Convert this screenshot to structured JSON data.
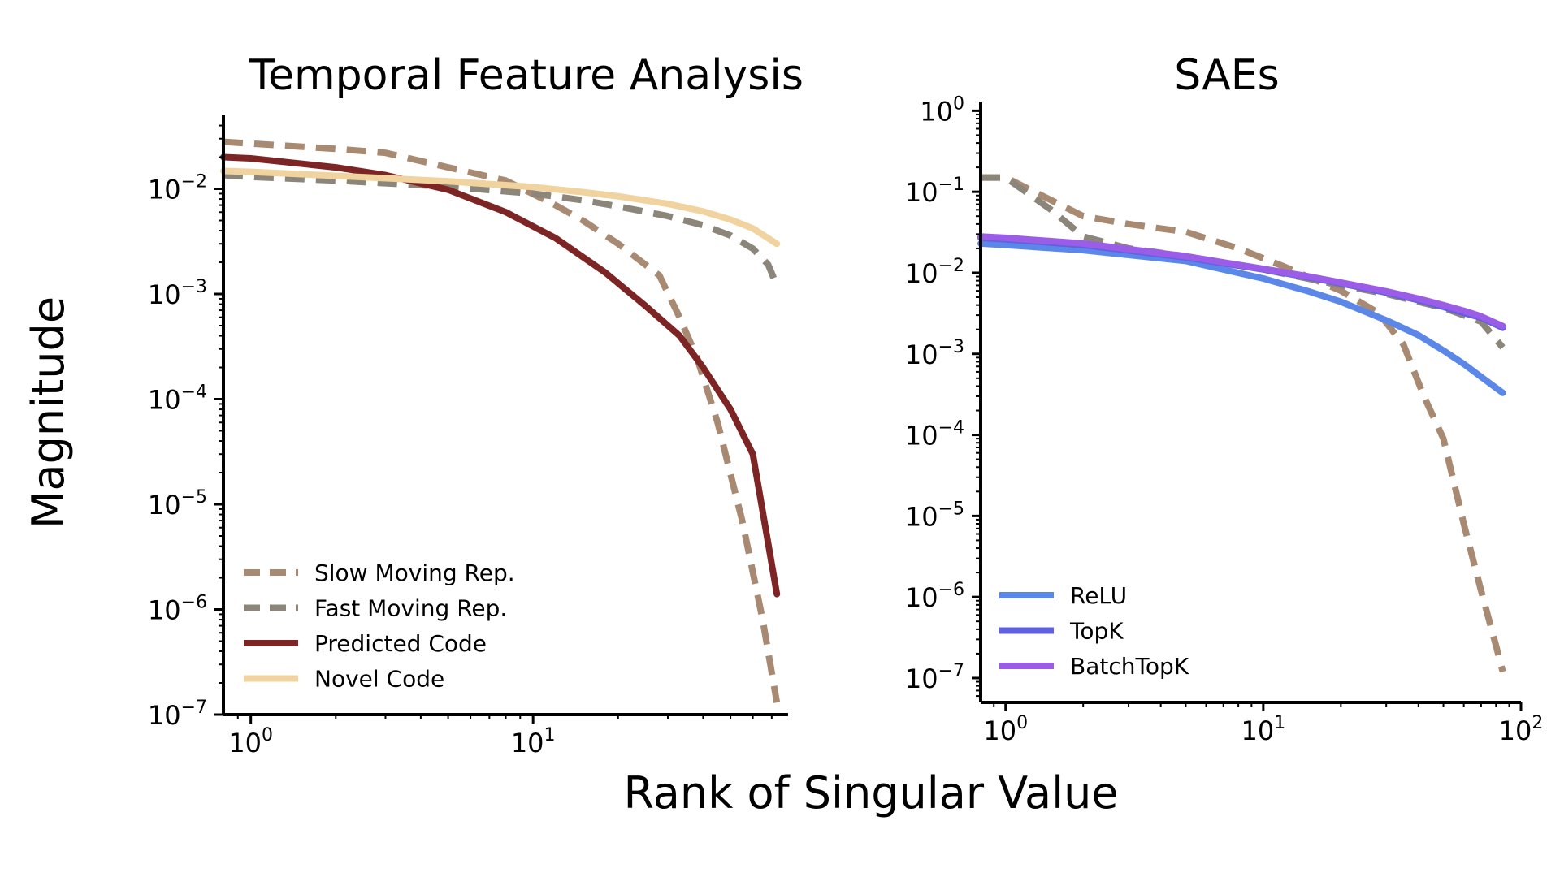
{
  "figure": {
    "xlabel": "Rank of Singular Value",
    "ylabel": "Magnitude"
  },
  "chart_data": [
    {
      "type": "line",
      "title": "Temporal Feature Analysis",
      "xscale": "log",
      "yscale": "log",
      "xlim": [
        0.8,
        80
      ],
      "ylim": [
        1e-07,
        0.05
      ],
      "xticks": [
        {
          "value": 1,
          "base": "10",
          "exp": "0"
        },
        {
          "value": 10,
          "base": "10",
          "exp": "1"
        }
      ],
      "yticks": [
        {
          "value": 0.01,
          "base": "10",
          "exp": "−2"
        },
        {
          "value": 0.001,
          "base": "10",
          "exp": "−3"
        },
        {
          "value": 0.0001,
          "base": "10",
          "exp": "−4"
        },
        {
          "value": 1e-05,
          "base": "10",
          "exp": "−5"
        },
        {
          "value": 1e-06,
          "base": "10",
          "exp": "−6"
        },
        {
          "value": 1e-07,
          "base": "10",
          "exp": "−7"
        }
      ],
      "legend_position": "lower-left",
      "series": [
        {
          "name": "Slow Moving Rep.",
          "color": "#a88a72",
          "dash": true,
          "x": [
            0.8,
            1,
            2,
            3,
            5,
            8,
            12,
            15,
            20,
            28,
            33,
            38,
            45,
            55,
            65,
            73
          ],
          "y": [
            0.028,
            0.027,
            0.024,
            0.022,
            0.016,
            0.012,
            0.007,
            0.005,
            0.003,
            0.0015,
            0.0006,
            0.00025,
            6e-05,
            7e-06,
            8e-07,
            1.3e-07
          ]
        },
        {
          "name": "Fast Moving Rep.",
          "color": "#8c8579",
          "dash": true,
          "x": [
            0.8,
            1,
            2,
            5,
            10,
            15,
            20,
            30,
            40,
            50,
            60,
            68,
            73
          ],
          "y": [
            0.0135,
            0.013,
            0.012,
            0.0105,
            0.009,
            0.0078,
            0.0068,
            0.0055,
            0.0045,
            0.0036,
            0.0027,
            0.0019,
            0.0012
          ]
        },
        {
          "name": "Predicted Code",
          "color": "#7d2524",
          "dash": false,
          "x": [
            0.8,
            1,
            2,
            3,
            5,
            8,
            12,
            18,
            25,
            33,
            40,
            50,
            60,
            73
          ],
          "y": [
            0.02,
            0.0195,
            0.016,
            0.0135,
            0.0098,
            0.006,
            0.0034,
            0.0016,
            0.00077,
            0.0004,
            0.0002,
            8e-05,
            3e-05,
            1.4e-06
          ]
        },
        {
          "name": "Novel Code",
          "color": "#f0d39e",
          "dash": false,
          "x": [
            0.8,
            1,
            2,
            5,
            10,
            15,
            20,
            30,
            40,
            50,
            60,
            73
          ],
          "y": [
            0.0148,
            0.0145,
            0.0133,
            0.0118,
            0.0104,
            0.0093,
            0.0085,
            0.0072,
            0.0061,
            0.0051,
            0.0042,
            0.003
          ]
        }
      ]
    },
    {
      "type": "line",
      "title": "SAEs",
      "xscale": "log",
      "yscale": "log",
      "xlim": [
        0.8,
        100
      ],
      "ylim": [
        5e-08,
        1.3
      ],
      "xticks": [
        {
          "value": 1,
          "base": "10",
          "exp": "0"
        },
        {
          "value": 10,
          "base": "10",
          "exp": "1"
        },
        {
          "value": 100,
          "base": "10",
          "exp": "2"
        }
      ],
      "yticks": [
        {
          "value": 1,
          "base": "10",
          "exp": "0"
        },
        {
          "value": 0.1,
          "base": "10",
          "exp": "−1"
        },
        {
          "value": 0.01,
          "base": "10",
          "exp": "−2"
        },
        {
          "value": 0.001,
          "base": "10",
          "exp": "−3"
        },
        {
          "value": 0.0001,
          "base": "10",
          "exp": "−4"
        },
        {
          "value": 1e-05,
          "base": "10",
          "exp": "−5"
        },
        {
          "value": 1e-06,
          "base": "10",
          "exp": "−6"
        },
        {
          "value": 1e-07,
          "base": "10",
          "exp": "−7"
        }
      ],
      "legend_position": "lower-left",
      "series": [
        {
          "name": "",
          "color": "#a88a72",
          "dash": true,
          "x": [
            0.8,
            1,
            2,
            3,
            5,
            8,
            12,
            20,
            28,
            35,
            42,
            50,
            60,
            70,
            80,
            85
          ],
          "y": [
            0.15,
            0.15,
            0.05,
            0.04,
            0.032,
            0.02,
            0.012,
            0.006,
            0.0032,
            0.0013,
            0.0003,
            9e-05,
            8e-06,
            1.2e-06,
            2.5e-07,
            1.2e-07
          ]
        },
        {
          "name": "",
          "color": "#8c8579",
          "dash": true,
          "x": [
            0.8,
            1,
            1.5,
            2,
            3,
            5,
            10,
            20,
            30,
            50,
            70,
            85
          ],
          "y": [
            0.15,
            0.15,
            0.06,
            0.028,
            0.02,
            0.016,
            0.011,
            0.007,
            0.0055,
            0.0037,
            0.0025,
            0.0012
          ]
        },
        {
          "name": "ReLU",
          "color": "#5b87e8",
          "dash": false,
          "x": [
            0.8,
            1,
            2,
            5,
            10,
            15,
            20,
            30,
            40,
            50,
            60,
            70,
            85
          ],
          "y": [
            0.023,
            0.022,
            0.019,
            0.014,
            0.0085,
            0.0059,
            0.0044,
            0.0026,
            0.0017,
            0.0011,
            0.00075,
            0.00052,
            0.00033
          ]
        },
        {
          "name": "TopK",
          "color": "#6060e0",
          "dash": false,
          "x": [
            0.8,
            1,
            2,
            5,
            10,
            15,
            20,
            30,
            40,
            50,
            60,
            70,
            85
          ],
          "y": [
            0.027,
            0.026,
            0.022,
            0.0155,
            0.011,
            0.0088,
            0.0074,
            0.0057,
            0.0046,
            0.0038,
            0.0032,
            0.0028,
            0.0021
          ]
        },
        {
          "name": "BatchTopK",
          "color": "#9b5de8",
          "dash": false,
          "x": [
            0.8,
            1,
            2,
            5,
            10,
            15,
            20,
            30,
            40,
            50,
            60,
            70,
            85
          ],
          "y": [
            0.028,
            0.027,
            0.023,
            0.016,
            0.0112,
            0.009,
            0.0076,
            0.0059,
            0.0048,
            0.004,
            0.0034,
            0.0029,
            0.0022
          ]
        }
      ]
    }
  ]
}
